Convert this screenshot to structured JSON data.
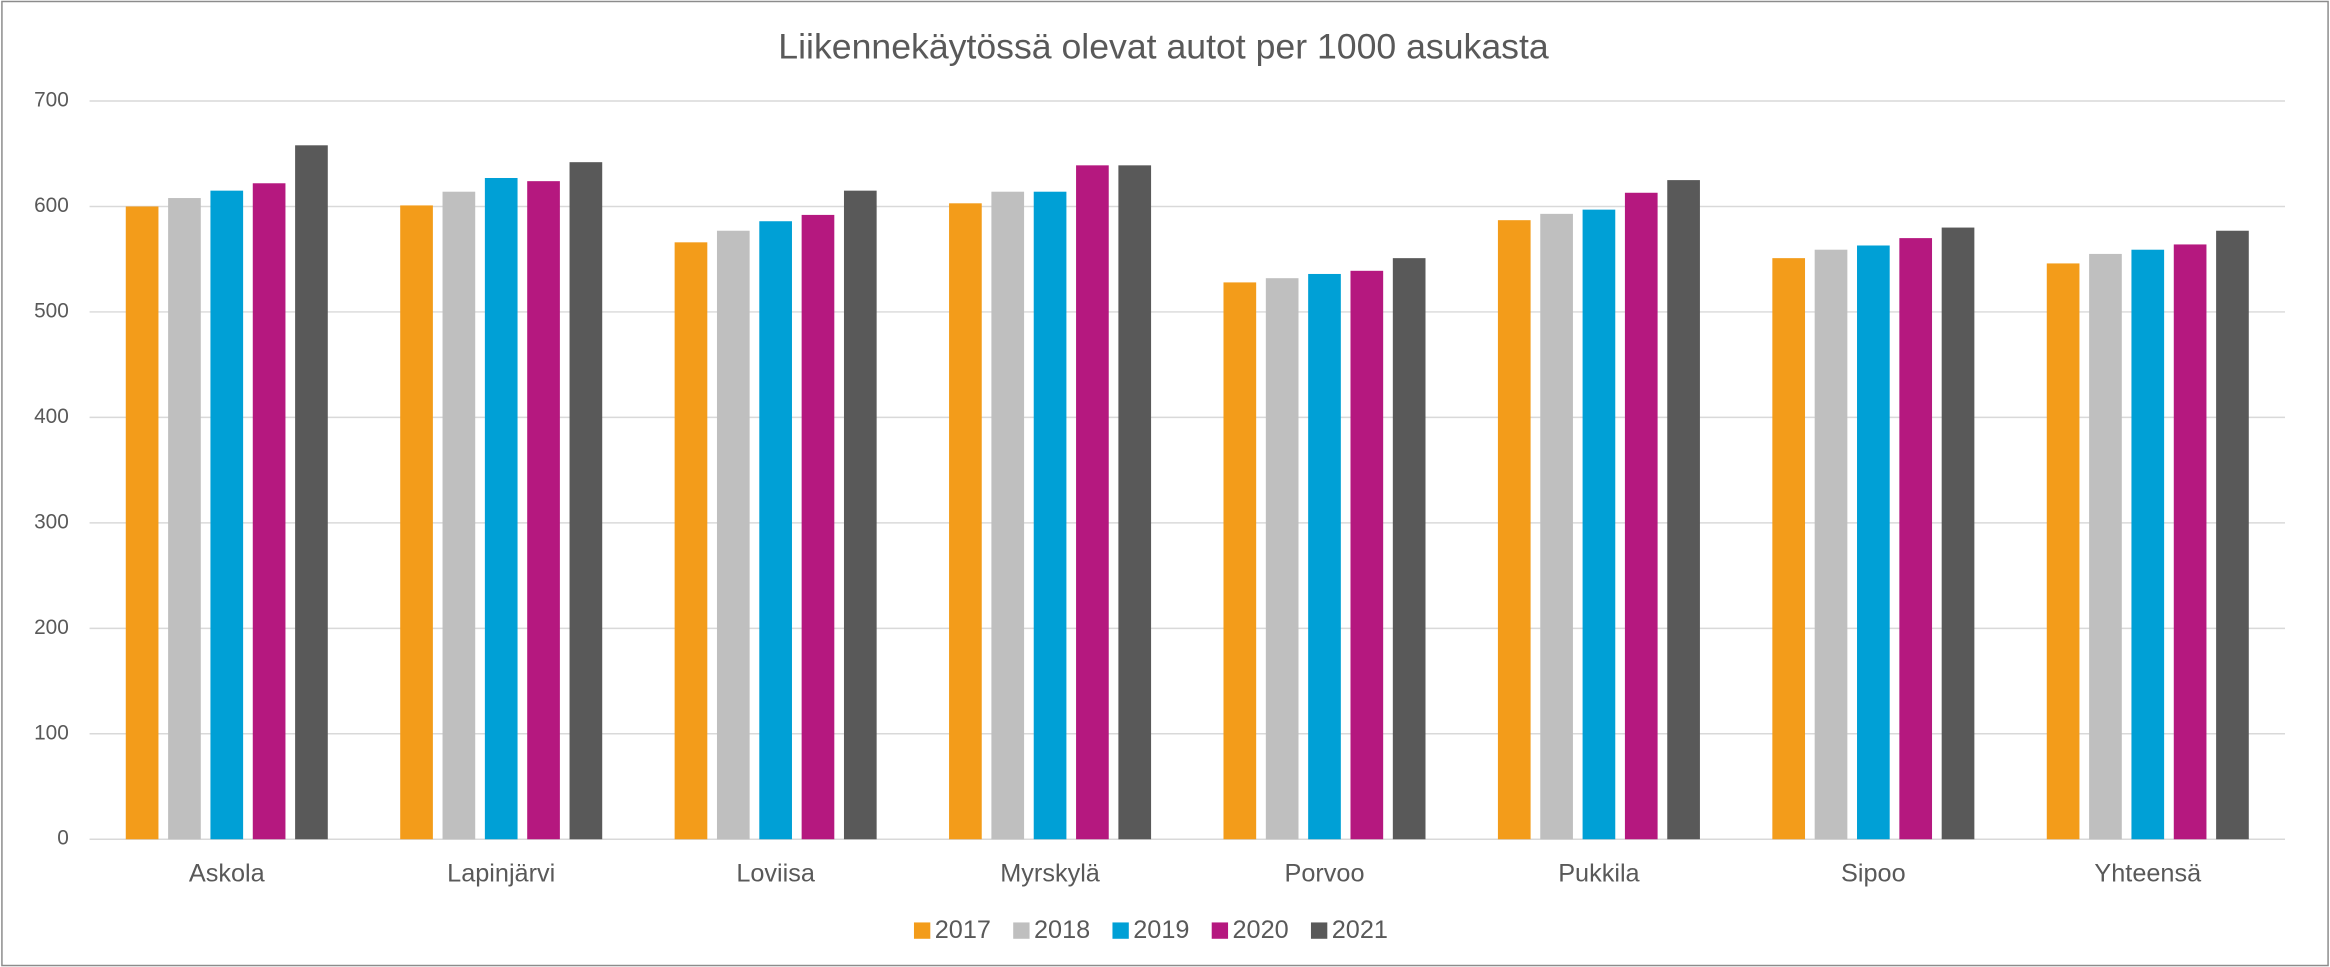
{
  "chart_data": {
    "type": "bar",
    "title": "Liikennekäytössä olevat autot per 1000 asukasta",
    "categories": [
      "Askola",
      "Lapinjärvi",
      "Loviisa",
      "Myrskylä",
      "Porvoo",
      "Pukkila",
      "Sipoo",
      "Yhteensä"
    ],
    "series": [
      {
        "name": "2017",
        "color": "#f39c1a",
        "values": [
          600,
          601,
          566,
          603,
          528,
          587,
          551,
          546
        ]
      },
      {
        "name": "2018",
        "color": "#bfbfbf",
        "values": [
          608,
          614,
          577,
          614,
          532,
          593,
          559,
          555
        ]
      },
      {
        "name": "2019",
        "color": "#00a0d6",
        "values": [
          615,
          627,
          586,
          614,
          536,
          597,
          563,
          559
        ]
      },
      {
        "name": "2020",
        "color": "#b5187f",
        "values": [
          622,
          624,
          592,
          639,
          539,
          613,
          570,
          564
        ]
      },
      {
        "name": "2021",
        "color": "#595959",
        "values": [
          658,
          642,
          615,
          639,
          551,
          625,
          580,
          577
        ]
      }
    ],
    "ylim": [
      0,
      700
    ],
    "yticks": [
      0,
      100,
      200,
      300,
      400,
      500,
      600,
      700
    ],
    "grid": true,
    "legend": "bottom"
  }
}
